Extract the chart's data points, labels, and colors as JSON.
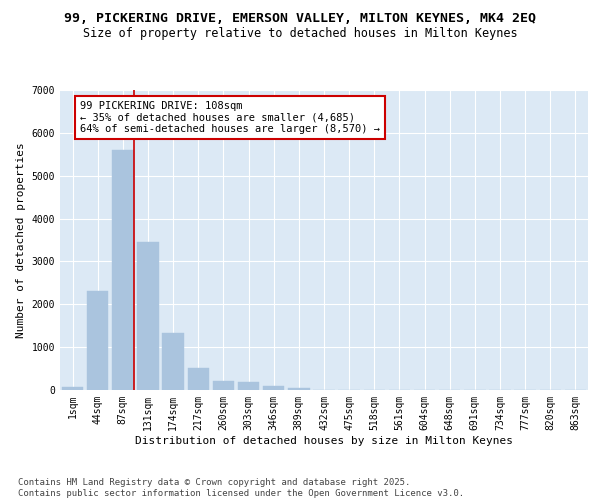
{
  "title1": "99, PICKERING DRIVE, EMERSON VALLEY, MILTON KEYNES, MK4 2EQ",
  "title2": "Size of property relative to detached houses in Milton Keynes",
  "xlabel": "Distribution of detached houses by size in Milton Keynes",
  "ylabel": "Number of detached properties",
  "categories": [
    "1sqm",
    "44sqm",
    "87sqm",
    "131sqm",
    "174sqm",
    "217sqm",
    "260sqm",
    "303sqm",
    "346sqm",
    "389sqm",
    "432sqm",
    "475sqm",
    "518sqm",
    "561sqm",
    "604sqm",
    "648sqm",
    "691sqm",
    "734sqm",
    "777sqm",
    "820sqm",
    "863sqm"
  ],
  "values": [
    60,
    2300,
    5600,
    3450,
    1320,
    520,
    210,
    180,
    90,
    50,
    0,
    0,
    0,
    0,
    0,
    0,
    0,
    0,
    0,
    0,
    0
  ],
  "bar_color": "#aac4de",
  "bar_edge_color": "#aac4de",
  "vline_x_idx": 2,
  "vline_color": "#cc0000",
  "annotation_text": "99 PICKERING DRIVE: 108sqm\n← 35% of detached houses are smaller (4,685)\n64% of semi-detached houses are larger (8,570) →",
  "annotation_box_color": "#cc0000",
  "ylim": [
    0,
    7000
  ],
  "yticks": [
    0,
    1000,
    2000,
    3000,
    4000,
    5000,
    6000,
    7000
  ],
  "fig_bg_color": "#ffffff",
  "plot_bg_color": "#dce9f5",
  "grid_color": "#ffffff",
  "footnote": "Contains HM Land Registry data © Crown copyright and database right 2025.\nContains public sector information licensed under the Open Government Licence v3.0.",
  "title1_fontsize": 9.5,
  "title2_fontsize": 8.5,
  "axis_label_fontsize": 8,
  "tick_fontsize": 7,
  "annot_fontsize": 7.5,
  "footnote_fontsize": 6.5
}
